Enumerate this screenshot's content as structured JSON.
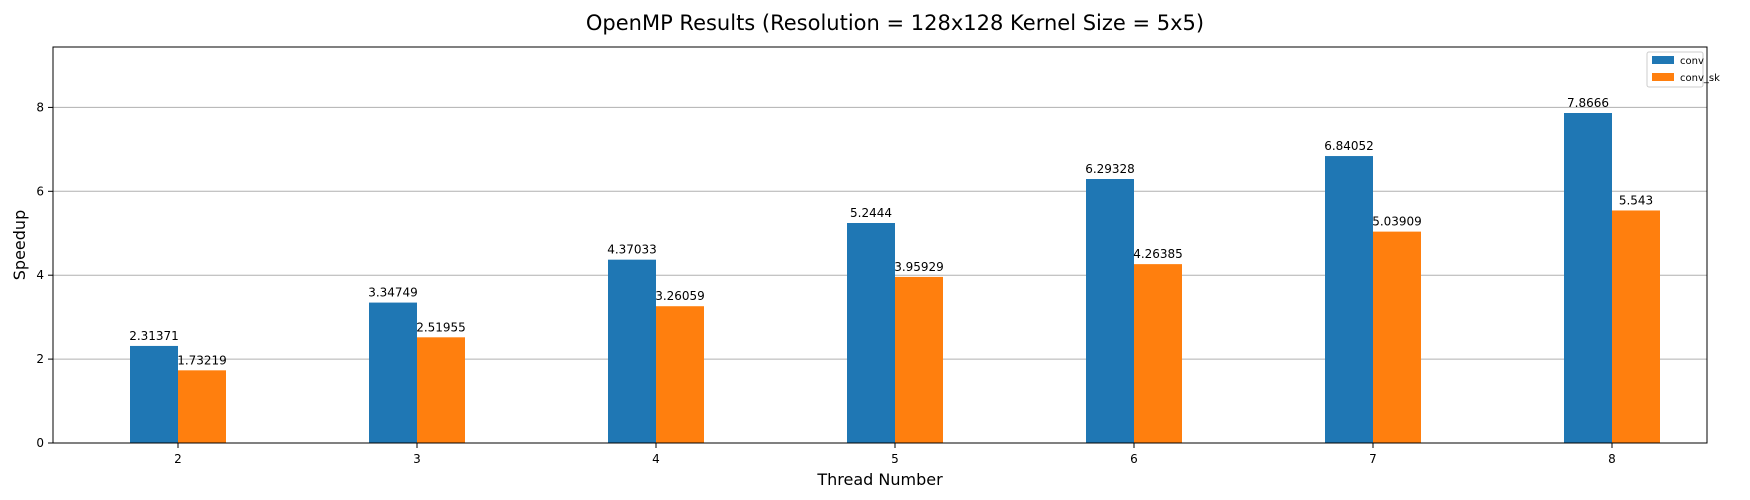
{
  "chart_data": {
    "type": "bar",
    "title": "OpenMP Results (Resolution = 128x128 Kernel Size = 5x5)",
    "xlabel": "Thread Number",
    "ylabel": "Speedup",
    "categories": [
      "2",
      "3",
      "4",
      "5",
      "6",
      "7",
      "8"
    ],
    "series": [
      {
        "name": "conv",
        "color": "#1f77b4",
        "values": [
          2.31371,
          3.34749,
          4.37033,
          5.2444,
          6.29328,
          6.84052,
          7.8666
        ],
        "labels": [
          "2.31371",
          "3.34749",
          "4.37033",
          "5.2444",
          "6.29328",
          "6.84052",
          "7.8666"
        ]
      },
      {
        "name": "conv_sk",
        "color": "#ff7f0e",
        "values": [
          1.73219,
          2.51955,
          3.26059,
          3.95929,
          4.26385,
          5.03909,
          5.543
        ],
        "labels": [
          "1.73219",
          "2.51955",
          "3.26059",
          "3.95929",
          "4.26385",
          "5.03909",
          "5.543"
        ]
      }
    ],
    "ylim": [
      0,
      9.44
    ],
    "yticks": [
      0,
      2,
      4,
      6,
      8
    ],
    "ytick_labels": [
      "0",
      "2",
      "4",
      "6",
      "8"
    ],
    "grid": "y",
    "legend_position": "top-right"
  }
}
